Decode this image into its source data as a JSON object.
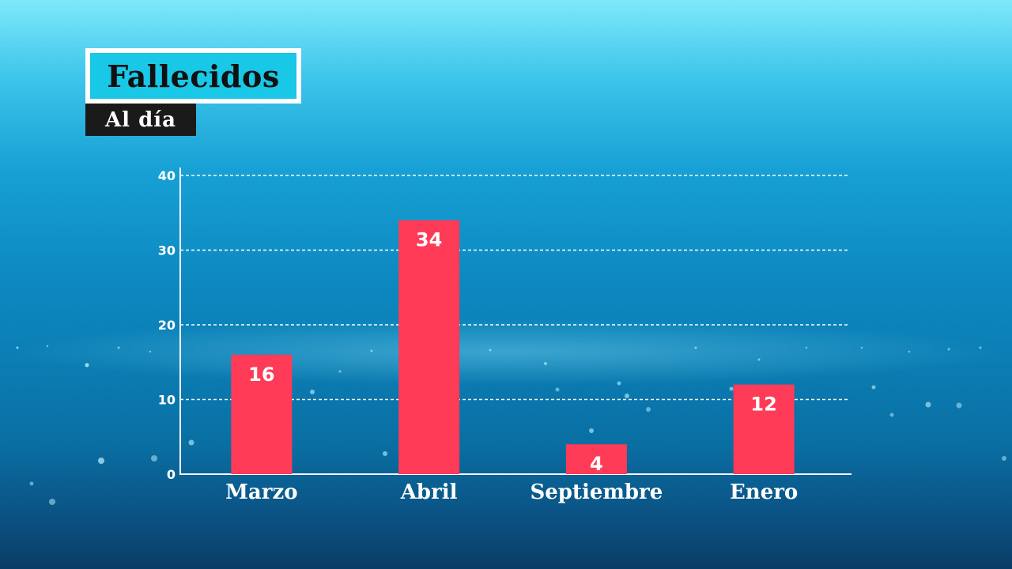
{
  "header": {
    "title": "Fallecidos",
    "subtitle": "Al día"
  },
  "colors": {
    "bar": "#ff3b57",
    "title_box": "#19c7e6",
    "subtitle_box": "#1a1a1a",
    "axis": "#ffffff",
    "grid": "#ffffff"
  },
  "chart_data": {
    "type": "bar",
    "categories": [
      "Marzo",
      "Abril",
      "Septiembre",
      "Enero"
    ],
    "values": [
      16,
      34,
      4,
      12
    ],
    "data_labels": [
      "16",
      "34",
      "4",
      "12"
    ],
    "yticks": [
      0,
      10,
      20,
      30,
      40
    ],
    "ylim": [
      0,
      40
    ],
    "grid": true,
    "grid_style": "dashed",
    "legend": "none"
  }
}
